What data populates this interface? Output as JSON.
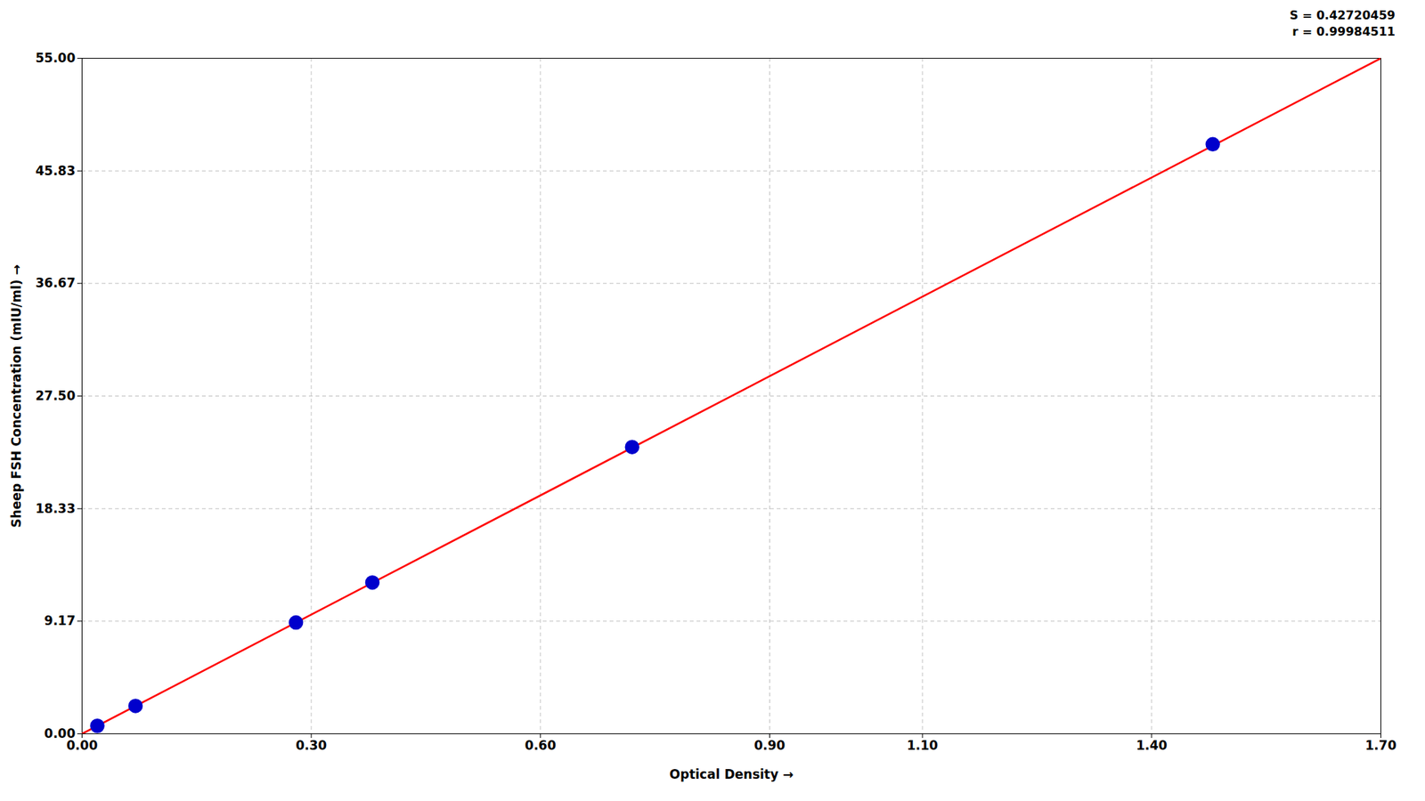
{
  "chart_data": {
    "type": "scatter",
    "xlabel": "Optical Density",
    "ylabel": "Sheep FSH Concentration (mIU/ml)",
    "annotations": [
      "S = 0.42720459",
      "r = 0.99984511"
    ],
    "series": [
      {
        "type": "line",
        "color": "#FF0000",
        "x": [
          0.0,
          1.7
        ],
        "values": [
          0.0,
          55.0
        ]
      },
      {
        "type": "scatter",
        "color": "#0000CC",
        "x": [
          0.02,
          0.07,
          0.28,
          0.38,
          0.72,
          1.48
        ],
        "values": [
          0.65,
          2.27,
          9.06,
          12.32,
          23.35,
          48.0
        ]
      }
    ],
    "xlim": [
      0.0,
      1.7
    ],
    "ylim": [
      0.0,
      55.0
    ],
    "xticks": [
      {
        "value": 0.0,
        "label": "0.00"
      },
      {
        "value": 0.3,
        "label": "0.30"
      },
      {
        "value": 0.6,
        "label": "0.60"
      },
      {
        "value": 0.9,
        "label": "0.90"
      },
      {
        "value": 1.1,
        "label": "1.10"
      },
      {
        "value": 1.4,
        "label": "1.40"
      },
      {
        "value": 1.7,
        "label": "1.70"
      }
    ],
    "yticks": [
      {
        "value": 0.0,
        "label": "0.00"
      },
      9.17,
      18.33,
      {
        "value": 27.5,
        "label": "27.50"
      },
      36.67,
      45.83,
      {
        "value": 55.0,
        "label": "55.00"
      }
    ],
    "grid": true
  }
}
